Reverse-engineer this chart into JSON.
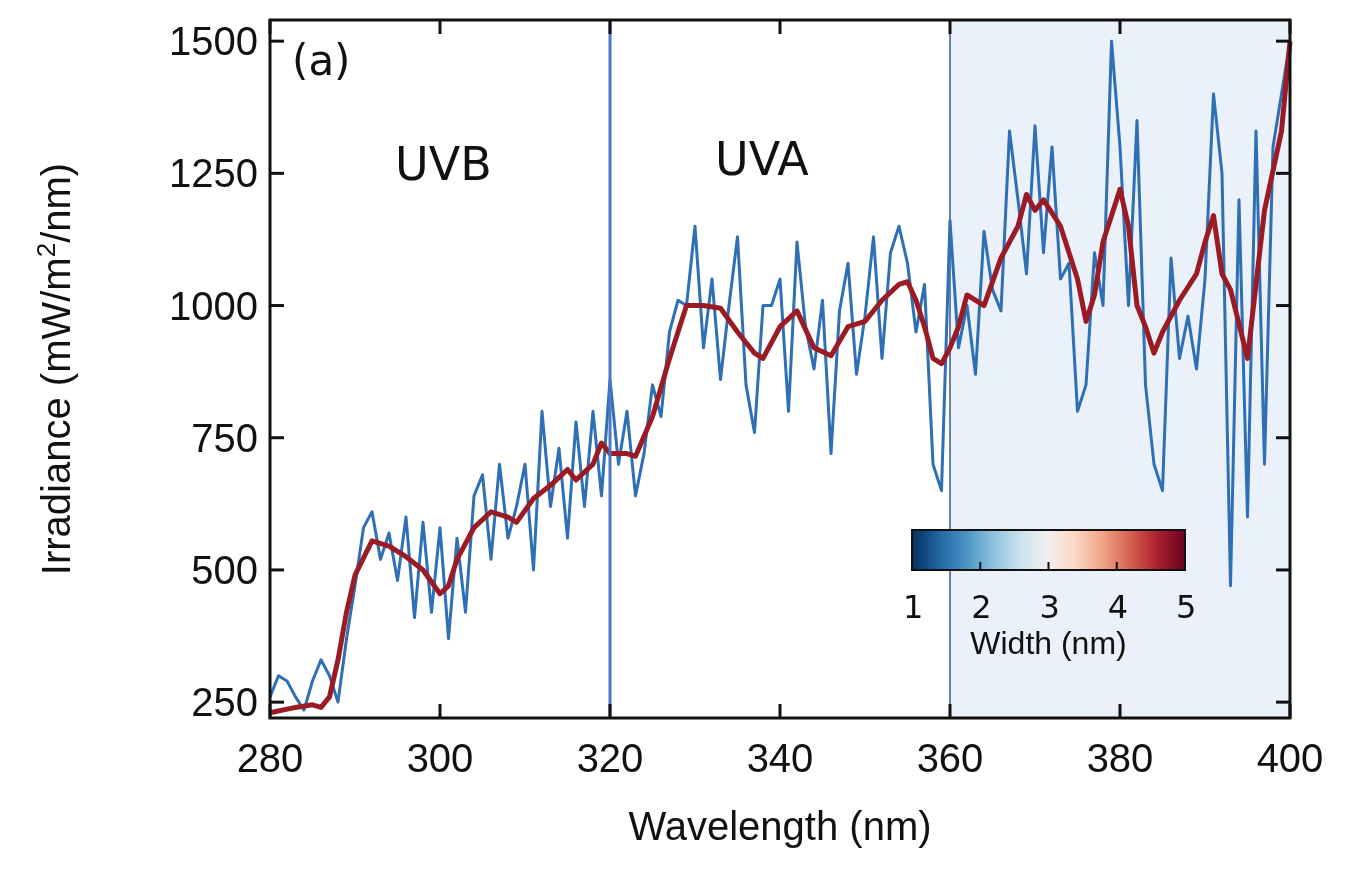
{
  "chart_data": {
    "type": "line",
    "xlabel": "Wavelength (nm)",
    "ylabel": "Irradiance (mW/m$^{2}$/nm)",
    "clabel": "Width (nm)",
    "xlim": [
      280,
      400
    ],
    "xticks": [
      280,
      300,
      320,
      340,
      360,
      380,
      400
    ],
    "ylim": [
      220,
      1540
    ],
    "yticks": [
      250,
      500,
      750,
      1000,
      1250,
      1500
    ],
    "grid": false,
    "line_style": "solid",
    "annotations": [
      "(a)",
      "UVB",
      "UVA",
      "1",
      "2",
      "3",
      "4",
      "5"
    ],
    "ref_lines": [
      {
        "axis": "x",
        "value": 320,
        "color": "#4a78c8"
      }
    ],
    "bands": [
      {
        "axis": "x",
        "from": 360,
        "to": 400,
        "color": "#ebf1fa"
      }
    ],
    "series": [
      {
        "color": "#2f6fb5",
        "x": [
          280,
          281,
          282,
          283,
          284,
          285,
          286,
          287,
          288,
          289,
          290,
          291,
          292,
          293,
          294,
          295,
          296,
          297,
          298,
          299,
          300,
          301,
          302,
          303,
          304,
          305,
          306,
          307,
          308,
          309,
          310,
          311,
          312,
          313,
          314,
          315,
          316,
          317,
          318,
          319,
          320,
          321,
          322,
          323,
          324,
          325,
          326,
          327,
          328,
          329,
          330,
          331,
          332,
          333,
          334,
          335,
          336,
          337,
          338,
          339,
          340,
          341,
          342,
          343,
          344,
          345,
          346,
          347,
          348,
          349,
          350,
          351,
          352,
          353,
          354,
          355,
          356,
          357,
          358,
          359,
          360,
          361,
          362,
          363,
          364,
          365,
          366,
          367,
          368,
          369,
          370,
          371,
          372,
          373,
          374,
          375,
          376,
          377,
          378,
          379,
          380,
          381,
          382,
          383,
          384,
          385,
          386,
          387,
          388,
          389,
          390,
          391,
          392,
          393,
          394,
          395,
          396,
          397,
          398,
          399,
          400
        ],
        "values": [
          260,
          300,
          290,
          260,
          235,
          290,
          330,
          300,
          250,
          370,
          470,
          580,
          610,
          520,
          570,
          480,
          600,
          410,
          590,
          420,
          580,
          370,
          560,
          420,
          640,
          680,
          520,
          700,
          560,
          620,
          700,
          500,
          800,
          620,
          730,
          560,
          780,
          620,
          800,
          640,
          860,
          700,
          800,
          640,
          720,
          850,
          790,
          950,
          1010,
          1000,
          1150,
          920,
          1050,
          860,
          1000,
          1130,
          850,
          760,
          1000,
          1000,
          1050,
          800,
          1120,
          960,
          880,
          1010,
          720,
          990,
          1080,
          870,
          980,
          1130,
          900,
          1100,
          1150,
          1080,
          950,
          1040,
          700,
          650,
          1160,
          920,
          1000,
          870,
          1140,
          1030,
          990,
          1330,
          1200,
          1060,
          1340,
          1100,
          1300,
          1050,
          1080,
          800,
          850,
          1100,
          1000,
          1500,
          1300,
          1000,
          1350,
          850,
          700,
          650,
          1090,
          900,
          980,
          880,
          1050,
          1400,
          1250,
          470,
          1200,
          600,
          1330,
          700,
          1300,
          1400,
          1500
        ]
      },
      {
        "color": "#9b1b25",
        "x": [
          280,
          283,
          285,
          286,
          287,
          288,
          289,
          290,
          292,
          294,
          296,
          298,
          300,
          301,
          302,
          304,
          306,
          308,
          309,
          311,
          313,
          315,
          316,
          318,
          319,
          320,
          322,
          323,
          325,
          327,
          329,
          331,
          333,
          335,
          337,
          338,
          340,
          342,
          344,
          346,
          348,
          350,
          352,
          354,
          355,
          356,
          357,
          358,
          359,
          360,
          361,
          362,
          364,
          366,
          368,
          369,
          370,
          371,
          373,
          375,
          376,
          377,
          378,
          379,
          380,
          381,
          382,
          383,
          384,
          385,
          387,
          389,
          390,
          391,
          392,
          393,
          395,
          397,
          399,
          400
        ],
        "values": [
          230,
          240,
          245,
          240,
          260,
          330,
          420,
          490,
          555,
          545,
          525,
          500,
          455,
          470,
          520,
          580,
          610,
          600,
          590,
          635,
          660,
          690,
          670,
          700,
          740,
          720,
          720,
          715,
          790,
          900,
          1000,
          1000,
          995,
          950,
          910,
          900,
          960,
          990,
          920,
          905,
          960,
          970,
          1010,
          1040,
          1045,
          1010,
          960,
          900,
          890,
          920,
          960,
          1020,
          1000,
          1090,
          1150,
          1210,
          1180,
          1200,
          1150,
          1050,
          970,
          1020,
          1120,
          1170,
          1220,
          1150,
          1000,
          960,
          910,
          950,
          1010,
          1060,
          1120,
          1170,
          1060,
          1030,
          900,
          1180,
          1330,
          1500
        ]
      }
    ]
  }
}
